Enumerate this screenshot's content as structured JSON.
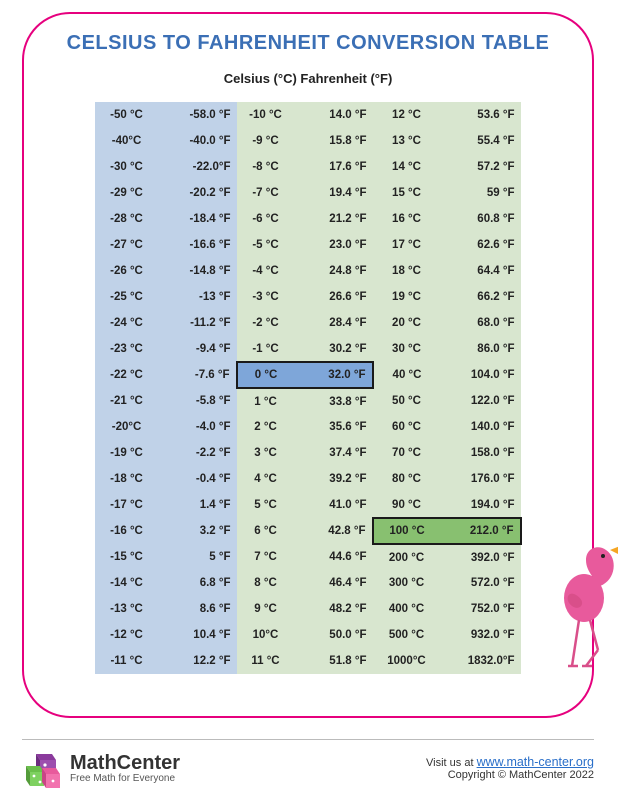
{
  "title": "CELSIUS TO FAHRENHEIT CONVERSION TABLE",
  "subtitle": "Celsius (°C) Fahrenheit (°F)",
  "columns": [
    {
      "bg_c": "#c0d2e8",
      "bg_f": "#c0d2e8",
      "w_c": 64,
      "w_f": 78
    },
    {
      "bg_c": "#d8e6cf",
      "bg_f": "#d8e6cf",
      "w_c": 58,
      "w_f": 78
    },
    {
      "bg_c": "#d8e6cf",
      "bg_f": "#d8e6cf",
      "w_c": 68,
      "w_f": 80
    }
  ],
  "highlights": {
    "zero": {
      "col": 1,
      "row": 10,
      "bg": "#7ea6d9",
      "border": "#1a1a1a"
    },
    "hundred": {
      "col": 2,
      "row": 16,
      "bg": "#88c070",
      "border": "#1a1a1a"
    }
  },
  "rows": [
    [
      {
        "c": "-50 °C",
        "f": "-58.0 °F"
      },
      {
        "c": "-10 °C",
        "f": "14.0 °F"
      },
      {
        "c": "12 °C",
        "f": "53.6 °F"
      }
    ],
    [
      {
        "c": "-40°C",
        "f": "-40.0 °F"
      },
      {
        "c": "-9 °C",
        "f": "15.8 °F"
      },
      {
        "c": "13 °C",
        "f": "55.4 °F"
      }
    ],
    [
      {
        "c": "-30 °C",
        "f": "-22.0°F"
      },
      {
        "c": "-8 °C",
        "f": "17.6 °F"
      },
      {
        "c": "14 °C",
        "f": "57.2 °F"
      }
    ],
    [
      {
        "c": "-29 °C",
        "f": "-20.2 °F"
      },
      {
        "c": "-7 °C",
        "f": "19.4 °F"
      },
      {
        "c": "15 °C",
        "f": "59 °F"
      }
    ],
    [
      {
        "c": "-28 °C",
        "f": "-18.4 °F"
      },
      {
        "c": "-6 °C",
        "f": "21.2 °F"
      },
      {
        "c": "16 °C",
        "f": "60.8 °F"
      }
    ],
    [
      {
        "c": "-27 °C",
        "f": "-16.6 °F"
      },
      {
        "c": "-5 °C",
        "f": "23.0 °F"
      },
      {
        "c": "17 °C",
        "f": "62.6 °F"
      }
    ],
    [
      {
        "c": "-26 °C",
        "f": "-14.8 °F"
      },
      {
        "c": "-4 °C",
        "f": "24.8 °F"
      },
      {
        "c": "18 °C",
        "f": "64.4 °F"
      }
    ],
    [
      {
        "c": "-25 °C",
        "f": "-13 °F"
      },
      {
        "c": "-3 °C",
        "f": "26.6 °F"
      },
      {
        "c": "19 °C",
        "f": "66.2 °F"
      }
    ],
    [
      {
        "c": "-24 °C",
        "f": "-11.2 °F"
      },
      {
        "c": "-2 °C",
        "f": "28.4 °F"
      },
      {
        "c": "20 °C",
        "f": "68.0 °F"
      }
    ],
    [
      {
        "c": "-23 °C",
        "f": "-9.4 °F"
      },
      {
        "c": "-1 °C",
        "f": "30.2 °F"
      },
      {
        "c": "30 °C",
        "f": "86.0 °F"
      }
    ],
    [
      {
        "c": "-22 °C",
        "f": "-7.6 °F"
      },
      {
        "c": "0 °C",
        "f": "32.0 °F"
      },
      {
        "c": "40 °C",
        "f": "104.0 °F"
      }
    ],
    [
      {
        "c": "-21 °C",
        "f": "-5.8 °F"
      },
      {
        "c": "1 °C",
        "f": "33.8 °F"
      },
      {
        "c": "50 °C",
        "f": "122.0 °F"
      }
    ],
    [
      {
        "c": "-20°C",
        "f": "-4.0 °F"
      },
      {
        "c": "2 °C",
        "f": "35.6 °F"
      },
      {
        "c": "60 °C",
        "f": "140.0 °F"
      }
    ],
    [
      {
        "c": "-19 °C",
        "f": "-2.2 °F"
      },
      {
        "c": "3 °C",
        "f": "37.4 °F"
      },
      {
        "c": "70 °C",
        "f": "158.0 °F"
      }
    ],
    [
      {
        "c": "-18 °C",
        "f": "-0.4 °F"
      },
      {
        "c": "4 °C",
        "f": "39.2 °F"
      },
      {
        "c": "80 °C",
        "f": "176.0 °F"
      }
    ],
    [
      {
        "c": "-17 °C",
        "f": "1.4 °F"
      },
      {
        "c": "5 °C",
        "f": "41.0 °F"
      },
      {
        "c": "90 °C",
        "f": "194.0 °F"
      }
    ],
    [
      {
        "c": "-16 °C",
        "f": "3.2 °F"
      },
      {
        "c": "6 °C",
        "f": "42.8 °F"
      },
      {
        "c": "100 °C",
        "f": "212.0 °F"
      }
    ],
    [
      {
        "c": "-15 °C",
        "f": "5 °F"
      },
      {
        "c": "7 °C",
        "f": "44.6 °F"
      },
      {
        "c": "200 °C",
        "f": "392.0 °F"
      }
    ],
    [
      {
        "c": "-14 °C",
        "f": "6.8 °F"
      },
      {
        "c": "8 °C",
        "f": "46.4 °F"
      },
      {
        "c": "300 °C",
        "f": "572.0 °F"
      }
    ],
    [
      {
        "c": "-13 °C",
        "f": "8.6 °F"
      },
      {
        "c": "9 °C",
        "f": "48.2 °F"
      },
      {
        "c": "400 °C",
        "f": "752.0 °F"
      }
    ],
    [
      {
        "c": "-12 °C",
        "f": "10.4 °F"
      },
      {
        "c": "10°C",
        "f": "50.0 °F"
      },
      {
        "c": "500 °C",
        "f": "932.0 °F"
      }
    ],
    [
      {
        "c": "-11 °C",
        "f": "12.2 °F"
      },
      {
        "c": "11 °C",
        "f": "51.8 °F"
      },
      {
        "c": "1000°C",
        "f": "1832.0°F"
      }
    ]
  ],
  "footer": {
    "brand_name": "MathCenter",
    "brand_tag": "Free Math for Everyone",
    "visit_label": "Visit us at ",
    "url": "www.math-center.org",
    "copyright": "Copyright © MathCenter 2022"
  },
  "colors": {
    "frame_border": "#e6007e",
    "title": "#3b6fb5",
    "link": "#2a6fc9",
    "flamingo_body": "#e85a9c",
    "flamingo_beak": "#f5a623",
    "flamingo_legs": "#d94f8a",
    "dice_purple": "#8a3a9c",
    "dice_green": "#6abf4b",
    "dice_pink": "#e85a9c"
  }
}
